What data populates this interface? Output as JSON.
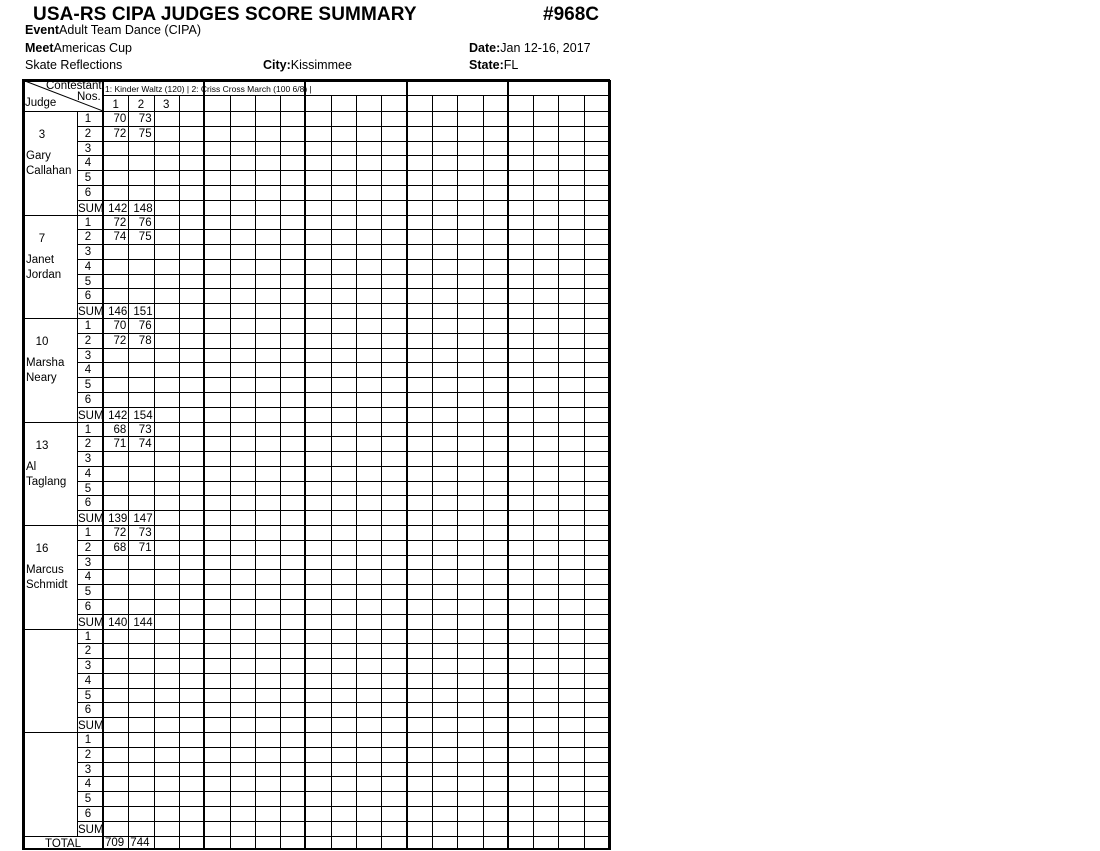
{
  "header": {
    "title": "USA-RS CIPA JUDGES SCORE SUMMARY",
    "form_number": "#968C",
    "event_label": "Event",
    "event": "Adult Team Dance  (CIPA)",
    "meet_label": "Meet",
    "meet": "Americas Cup",
    "date_label": "Date:",
    "date": "Jan 12-16, 2017",
    "club": "Skate Reflections",
    "city_label": "City:",
    "city": "Kissimmee",
    "state_label": "State:",
    "state": "FL"
  },
  "table": {
    "contestant_label": "Contestant",
    "nos_label": "Nos.",
    "judge_label": "Judge",
    "dances_text": "1: Kinder Waltz (120) | 2: Criss Cross March (100 6/8) |",
    "contestant_numbers": [
      "1",
      "2",
      "3"
    ],
    "row_labels": [
      "1",
      "2",
      "3",
      "4",
      "5",
      "6",
      "SUM"
    ],
    "total_label": "TOTAL",
    "judges": [
      {
        "number": "3",
        "first": "Gary",
        "last": "Callahan",
        "scores": [
          [
            "70",
            "73"
          ],
          [
            "72",
            "75"
          ]
        ],
        "sums": [
          "142",
          "148"
        ]
      },
      {
        "number": "7",
        "first": "Janet",
        "last": "Jordan",
        "scores": [
          [
            "72",
            "76"
          ],
          [
            "74",
            "75"
          ]
        ],
        "sums": [
          "146",
          "151"
        ]
      },
      {
        "number": "10",
        "first": "Marsha",
        "last": "Neary",
        "scores": [
          [
            "70",
            "76"
          ],
          [
            "72",
            "78"
          ]
        ],
        "sums": [
          "142",
          "154"
        ]
      },
      {
        "number": "13",
        "first": "Al",
        "last": "Taglang",
        "scores": [
          [
            "68",
            "73"
          ],
          [
            "71",
            "74"
          ]
        ],
        "sums": [
          "139",
          "147"
        ]
      },
      {
        "number": "16",
        "first": "Marcus",
        "last": "Schmidt",
        "scores": [
          [
            "72",
            "73"
          ],
          [
            "68",
            "71"
          ]
        ],
        "sums": [
          "140",
          "144"
        ]
      },
      {
        "number": "",
        "first": "",
        "last": "",
        "scores": [],
        "sums": []
      },
      {
        "number": "",
        "first": "",
        "last": "",
        "scores": [],
        "sums": []
      }
    ],
    "totals": [
      "709",
      "744"
    ]
  }
}
